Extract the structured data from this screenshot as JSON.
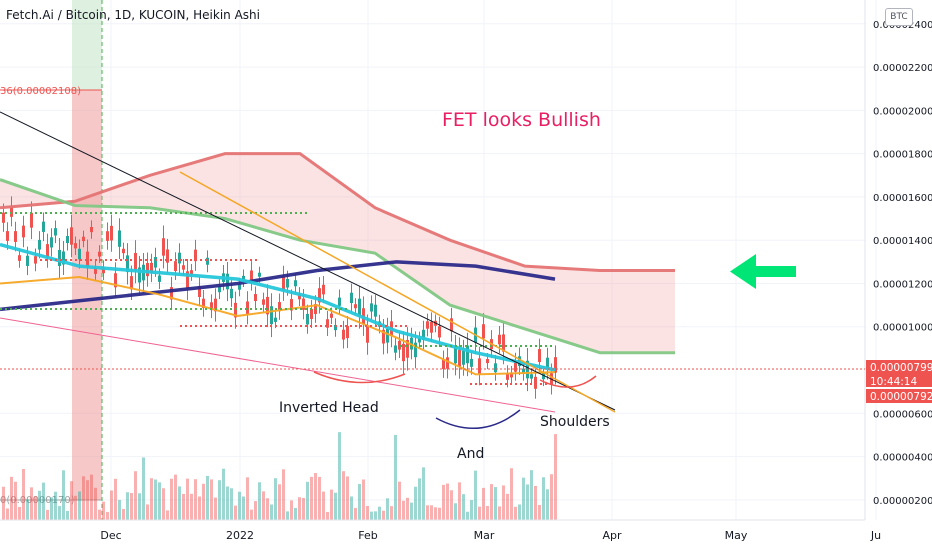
{
  "chart_data": {
    "type": "candlestick",
    "title": "Fetch.Ai / Bitcoin, 1D, KUCOIN, Heikin Ashi",
    "currency_button": "BTC",
    "x_tick_labels": [
      "Dec",
      "2022",
      "Feb",
      "Mar",
      "Apr",
      "May",
      "Ju"
    ],
    "y_tick_labels": [
      "0.00002400",
      "0.00002200",
      "0.00002000",
      "0.00001800",
      "0.00001600",
      "0.00001400",
      "0.00001200",
      "0.00001000",
      "0.00000600",
      "0.00000400",
      "0.00000200"
    ],
    "y_tick_values": [
      2.4e-05,
      2.2e-05,
      2e-05,
      1.8e-05,
      1.6e-05,
      1.4e-05,
      1.2e-05,
      1e-05,
      6e-06,
      4e-06,
      2e-06
    ],
    "ylim": [
      1.3e-06,
      2.51e-05
    ],
    "price_labels": {
      "last_price": "0.00000799",
      "countdown": "10:44:14",
      "low": "0.00000792"
    },
    "annotations": {
      "headline": "FET looks Bullish",
      "inverted_head": "Inverted Head",
      "and": "And",
      "shoulders": "Shoulders",
      "fib_level_top": "36(0.00002108)",
      "fib_level_bottom": "0(0.00000170)"
    },
    "series": [
      {
        "name": "cloud_upper",
        "color": "#e57373",
        "values": [
          1.55e-05,
          1.58e-05,
          1.7e-05,
          1.8e-05,
          1.8e-05,
          1.55e-05,
          1.4e-05,
          1.28e-05,
          1.26e-05,
          1.26e-05
        ]
      },
      {
        "name": "cloud_lower",
        "color": "#81c784",
        "values": [
          1.68e-05,
          1.56e-05,
          1.55e-05,
          1.5e-05,
          1.4e-05,
          1.34e-05,
          1.1e-05,
          9.9e-06,
          8.8e-06,
          8.8e-06
        ]
      },
      {
        "name": "ma_long",
        "color": "#2b2a89",
        "values": [
          1.08e-05,
          1.12e-05,
          1.16e-05,
          1.2e-05,
          1.26e-05,
          1.3e-05,
          1.28e-05,
          1.22e-05
        ]
      },
      {
        "name": "ma_mid",
        "color": "#26c6da",
        "values": [
          1.38e-05,
          1.28e-05,
          1.25e-05,
          1.22e-05,
          1.13e-05,
          9.8e-06,
          8.8e-06,
          8e-06
        ]
      },
      {
        "name": "ma_fast",
        "color": "#f5a623",
        "values": [
          1.2e-05,
          1.23e-05,
          1.15e-05,
          1.05e-05,
          1.1e-05,
          9.5e-06,
          7.8e-06,
          7.9e-06
        ]
      }
    ],
    "legend": "none",
    "grid": true
  },
  "colors": {
    "up": "#26a69a",
    "down": "#ef5350",
    "headline": "#e91e63",
    "arrow": "#00e676",
    "trendline_black": "#131722",
    "trendline_orange": "#f5a623",
    "trendline_pink": "#f06292",
    "grid": "#f0f3fa"
  }
}
